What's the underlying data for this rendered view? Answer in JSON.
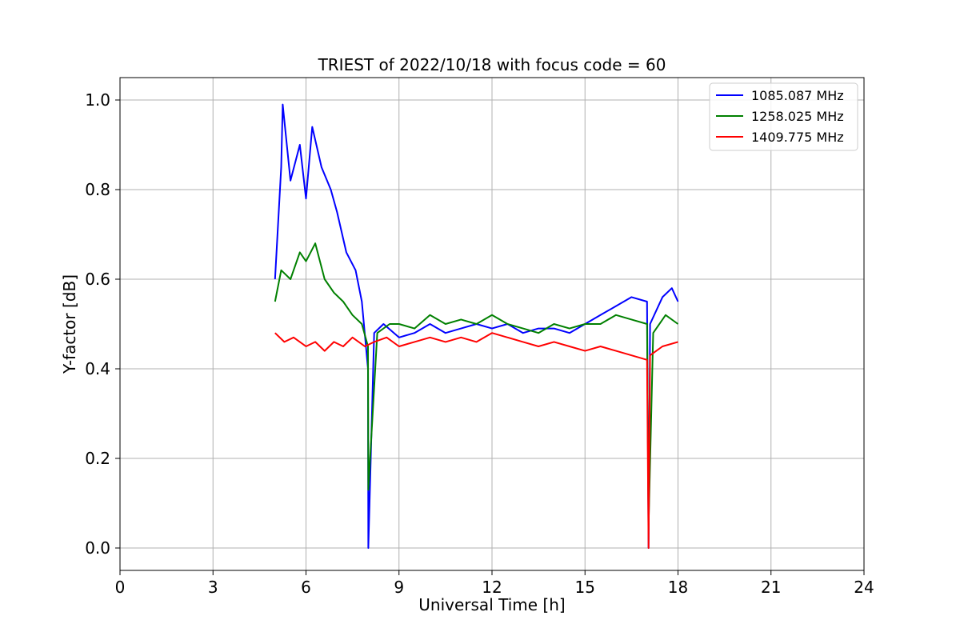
{
  "chart_data": {
    "type": "line",
    "title": "TRIEST of 2022/10/18 with focus code = 60",
    "xlabel": "Universal Time [h]",
    "ylabel": "Y-factor [dB]",
    "xlim": [
      0,
      24
    ],
    "ylim": [
      -0.05,
      1.05
    ],
    "xticks": [
      0,
      3,
      6,
      9,
      12,
      15,
      18,
      21,
      24
    ],
    "yticks": [
      0.0,
      0.2,
      0.4,
      0.6,
      0.8,
      1.0
    ],
    "xtick_labels": [
      "0",
      "3",
      "6",
      "9",
      "12",
      "15",
      "18",
      "21",
      "24"
    ],
    "ytick_labels": [
      "0.0",
      "0.2",
      "0.4",
      "0.6",
      "0.8",
      "1.0"
    ],
    "grid": true,
    "legend_position": "top-right",
    "series": [
      {
        "name": "1085.087 MHz",
        "color": "#0000ff",
        "x": [
          5.0,
          5.2,
          5.25,
          5.5,
          5.8,
          6.0,
          6.2,
          6.5,
          6.8,
          7.0,
          7.3,
          7.6,
          7.8,
          8.0,
          8.01,
          8.2,
          8.5,
          9.0,
          9.5,
          10.0,
          10.5,
          11.0,
          11.5,
          12.0,
          12.5,
          13.0,
          13.5,
          14.0,
          14.5,
          15.0,
          15.5,
          16.0,
          16.5,
          17.0,
          17.05,
          17.1,
          17.5,
          17.8,
          18.0
        ],
        "y": [
          0.6,
          0.85,
          0.99,
          0.82,
          0.9,
          0.78,
          0.94,
          0.85,
          0.8,
          0.75,
          0.66,
          0.62,
          0.55,
          0.4,
          0.0,
          0.48,
          0.5,
          0.47,
          0.48,
          0.5,
          0.48,
          0.49,
          0.5,
          0.49,
          0.5,
          0.48,
          0.49,
          0.49,
          0.48,
          0.5,
          0.52,
          0.54,
          0.56,
          0.55,
          0.0,
          0.5,
          0.56,
          0.58,
          0.55
        ]
      },
      {
        "name": "1258.025 MHz",
        "color": "#008000",
        "x": [
          5.0,
          5.2,
          5.5,
          5.8,
          6.0,
          6.3,
          6.6,
          6.9,
          7.2,
          7.5,
          7.8,
          8.0,
          8.01,
          8.3,
          8.7,
          9.0,
          9.5,
          10.0,
          10.5,
          11.0,
          11.5,
          12.0,
          12.5,
          13.0,
          13.5,
          14.0,
          14.5,
          15.0,
          15.5,
          16.0,
          16.5,
          17.0,
          17.05,
          17.2,
          17.6,
          18.0
        ],
        "y": [
          0.55,
          0.62,
          0.6,
          0.66,
          0.64,
          0.68,
          0.6,
          0.57,
          0.55,
          0.52,
          0.5,
          0.45,
          0.13,
          0.48,
          0.5,
          0.5,
          0.49,
          0.52,
          0.5,
          0.51,
          0.5,
          0.52,
          0.5,
          0.49,
          0.48,
          0.5,
          0.49,
          0.5,
          0.5,
          0.52,
          0.51,
          0.5,
          0.05,
          0.48,
          0.52,
          0.5
        ]
      },
      {
        "name": "1409.775 MHz",
        "color": "#ff0000",
        "x": [
          5.0,
          5.3,
          5.6,
          6.0,
          6.3,
          6.6,
          6.9,
          7.2,
          7.5,
          7.9,
          8.2,
          8.6,
          9.0,
          9.5,
          10.0,
          10.5,
          11.0,
          11.5,
          12.0,
          12.5,
          13.0,
          13.5,
          14.0,
          14.5,
          15.0,
          15.5,
          16.0,
          16.5,
          17.0,
          17.05,
          17.1,
          17.5,
          18.0
        ],
        "y": [
          0.48,
          0.46,
          0.47,
          0.45,
          0.46,
          0.44,
          0.46,
          0.45,
          0.47,
          0.45,
          0.46,
          0.47,
          0.45,
          0.46,
          0.47,
          0.46,
          0.47,
          0.46,
          0.48,
          0.47,
          0.46,
          0.45,
          0.46,
          0.45,
          0.44,
          0.45,
          0.44,
          0.43,
          0.42,
          0.0,
          0.43,
          0.45,
          0.46
        ]
      }
    ]
  }
}
